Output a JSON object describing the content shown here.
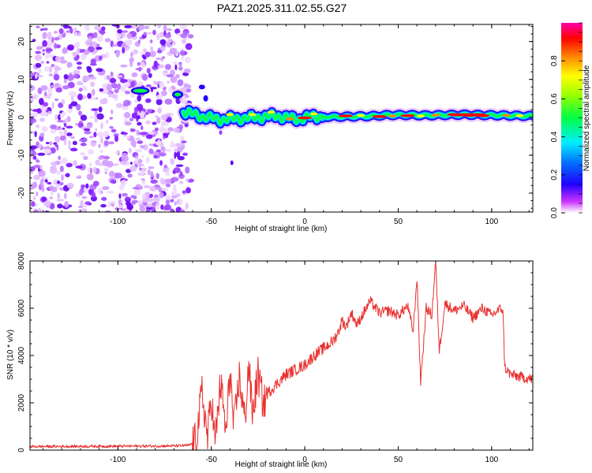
{
  "title": "PAZ1.2025.311.02.55.G27",
  "chart_data": [
    {
      "type": "heatmap",
      "xlabel": "Height of straight line (km)",
      "ylabel": "Frequency (Hz)",
      "xlim": [
        -147,
        122
      ],
      "ylim": [
        -25,
        24.5
      ],
      "xticks": [
        -100,
        -50,
        0,
        50,
        100
      ],
      "yticks": [
        -20,
        -10,
        0,
        10,
        20
      ],
      "xtick_labels": [
        "-100",
        "-50",
        "0",
        "50",
        "100"
      ],
      "ytick_labels": [
        "-20",
        "-10",
        "0",
        "10",
        "20"
      ],
      "colorbar": {
        "label": "Normalized spectral amplitude",
        "range": [
          0,
          1
        ],
        "ticks": [
          "0.0",
          "0.2",
          "0.4",
          "0.6",
          "0.8"
        ]
      },
      "ridge": {
        "description": "dominant frequency track",
        "x": [
          -65,
          -55,
          -45,
          -35,
          -25,
          -15,
          -5,
          5,
          15,
          25,
          35,
          45,
          55,
          65,
          75,
          85,
          95,
          105,
          115,
          122
        ],
        "y": [
          1.5,
          0.2,
          -0.6,
          -0.3,
          0.0,
          0.4,
          -0.5,
          0.2,
          0.1,
          0.2,
          0.3,
          0.6,
          0.6,
          0.5,
          0.6,
          0.7,
          0.6,
          0.5,
          0.4,
          0.3
        ]
      },
      "noise_region_end_x": -65
    },
    {
      "type": "line",
      "xlabel": "Height of straight line (km)",
      "ylabel": "SNR (10 * v/v)",
      "xlim": [
        -147,
        122
      ],
      "ylim": [
        0,
        8000
      ],
      "xticks": [
        -100,
        -50,
        0,
        50,
        100
      ],
      "yticks": [
        0,
        2000,
        4000,
        6000,
        8000
      ],
      "xtick_labels": [
        "-100",
        "-50",
        "0",
        "50",
        "100"
      ],
      "ytick_labels": [
        "0",
        "2000",
        "4000",
        "6000",
        "8000"
      ],
      "color": "#e8312f",
      "series": [
        {
          "name": "SNR",
          "x": [
            -147,
            -120,
            -90,
            -70,
            -62,
            -58,
            -55,
            -52,
            -50,
            -48,
            -45,
            -42,
            -40,
            -38,
            -35,
            -32,
            -30,
            -28,
            -25,
            -22,
            -20,
            -15,
            -10,
            -5,
            0,
            5,
            10,
            15,
            18,
            20,
            22,
            25,
            28,
            30,
            35,
            40,
            45,
            50,
            55,
            58,
            60,
            62,
            65,
            68,
            70,
            72,
            75,
            80,
            85,
            90,
            95,
            100,
            105,
            106,
            107,
            110,
            115,
            122
          ],
          "y": [
            150,
            160,
            170,
            180,
            200,
            400,
            2500,
            500,
            2300,
            300,
            2900,
            600,
            3500,
            900,
            3100,
            1200,
            3700,
            1500,
            3200,
            1900,
            2400,
            2800,
            3200,
            3400,
            3600,
            4000,
            4300,
            4600,
            5000,
            5500,
            5200,
            5800,
            5300,
            5600,
            6300,
            5800,
            5900,
            5700,
            6100,
            5000,
            7300,
            2900,
            6000,
            5700,
            8000,
            4200,
            6200,
            5900,
            6100,
            5600,
            6000,
            5700,
            6000,
            5900,
            3500,
            3200,
            3100,
            3000
          ]
        }
      ]
    }
  ]
}
